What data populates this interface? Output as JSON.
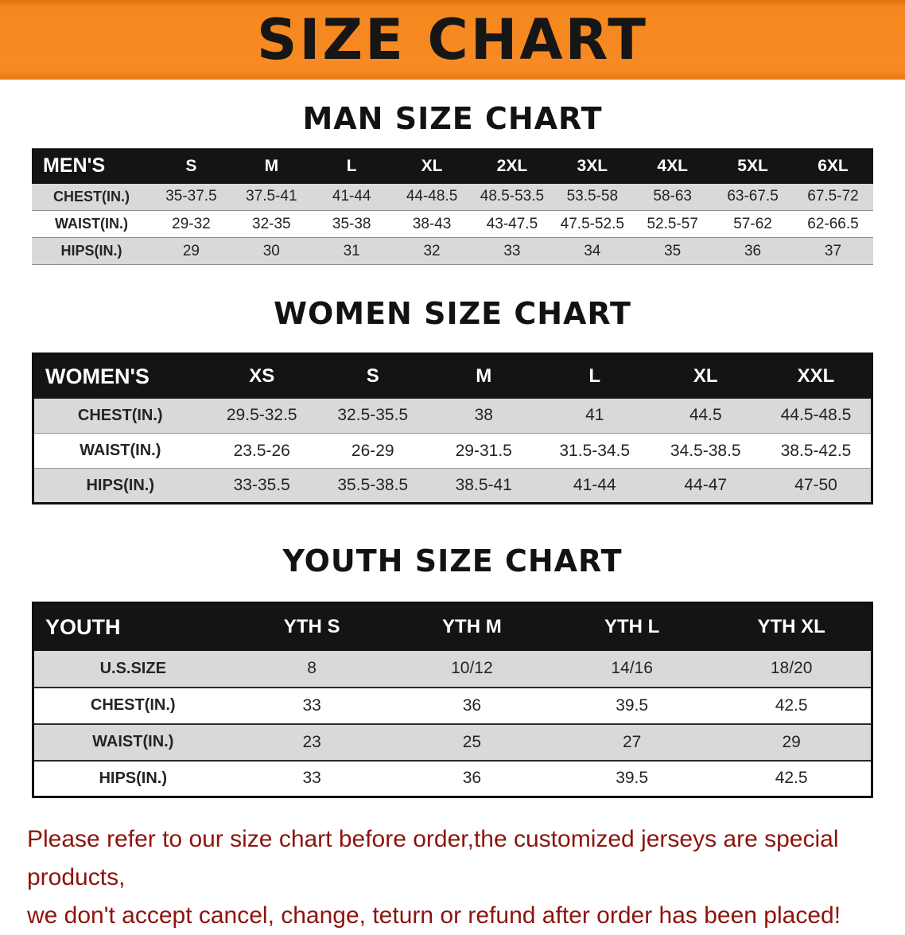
{
  "banner": {
    "title": "SIZE CHART",
    "bg": "#f6871f"
  },
  "sections": [
    {
      "heading": "MAN SIZE CHART",
      "table": {
        "name": "mens-size-table",
        "header": [
          "MEN'S",
          "S",
          "M",
          "L",
          "XL",
          "2XL",
          "3XL",
          "4XL",
          "5XL",
          "6XL"
        ],
        "rows": [
          [
            "CHEST(IN.)",
            "35-37.5",
            "37.5-41",
            "41-44",
            "44-48.5",
            "48.5-53.5",
            "53.5-58",
            "58-63",
            "63-67.5",
            "67.5-72"
          ],
          [
            "WAIST(IN.)",
            "29-32",
            "32-35",
            "35-38",
            "38-43",
            "43-47.5",
            "47.5-52.5",
            "52.5-57",
            "57-62",
            "62-66.5"
          ],
          [
            "HIPS(IN.)",
            "29",
            "30",
            "31",
            "32",
            "33",
            "34",
            "35",
            "36",
            "37"
          ]
        ],
        "row_shading": [
          "gray",
          "white",
          "gray"
        ]
      }
    },
    {
      "heading": "WOMEN SIZE CHART",
      "table": {
        "name": "womens-size-table",
        "header": [
          "WOMEN'S",
          "XS",
          "S",
          "M",
          "L",
          "XL",
          "XXL"
        ],
        "rows": [
          [
            "CHEST(IN.)",
            "29.5-32.5",
            "32.5-35.5",
            "38",
            "41",
            "44.5",
            "44.5-48.5"
          ],
          [
            "WAIST(IN.)",
            "23.5-26",
            "26-29",
            "29-31.5",
            "31.5-34.5",
            "34.5-38.5",
            "38.5-42.5"
          ],
          [
            "HIPS(IN.)",
            "33-35.5",
            "35.5-38.5",
            "38.5-41",
            "41-44",
            "44-47",
            "47-50"
          ]
        ],
        "row_shading": [
          "gray",
          "white",
          "gray"
        ]
      }
    },
    {
      "heading": "YOUTH SIZE CHART",
      "table": {
        "name": "youth-size-table",
        "header": [
          "YOUTH",
          "YTH S",
          "YTH M",
          "YTH L",
          "YTH XL"
        ],
        "rows": [
          [
            "U.S.SIZE",
            "8",
            "10/12",
            "14/16",
            "18/20"
          ],
          [
            "CHEST(IN.)",
            "33",
            "36",
            "39.5",
            "42.5"
          ],
          [
            "WAIST(IN.)",
            "23",
            "25",
            "27",
            "29"
          ],
          [
            "HIPS(IN.)",
            "33",
            "36",
            "39.5",
            "42.5"
          ]
        ],
        "row_shading": [
          "gray",
          "white",
          "gray",
          "white"
        ]
      }
    }
  ],
  "footer": {
    "line1": "Please refer to our size chart before order,the customized jerseys are special products,",
    "line2": "we don't accept cancel, change, teturn or refund after order has been placed!"
  },
  "colors": {
    "banner_bg": "#f6871f",
    "table_header_bg": "#141414",
    "row_gray": "#d9d9d9",
    "footer_text": "#8d140d"
  }
}
